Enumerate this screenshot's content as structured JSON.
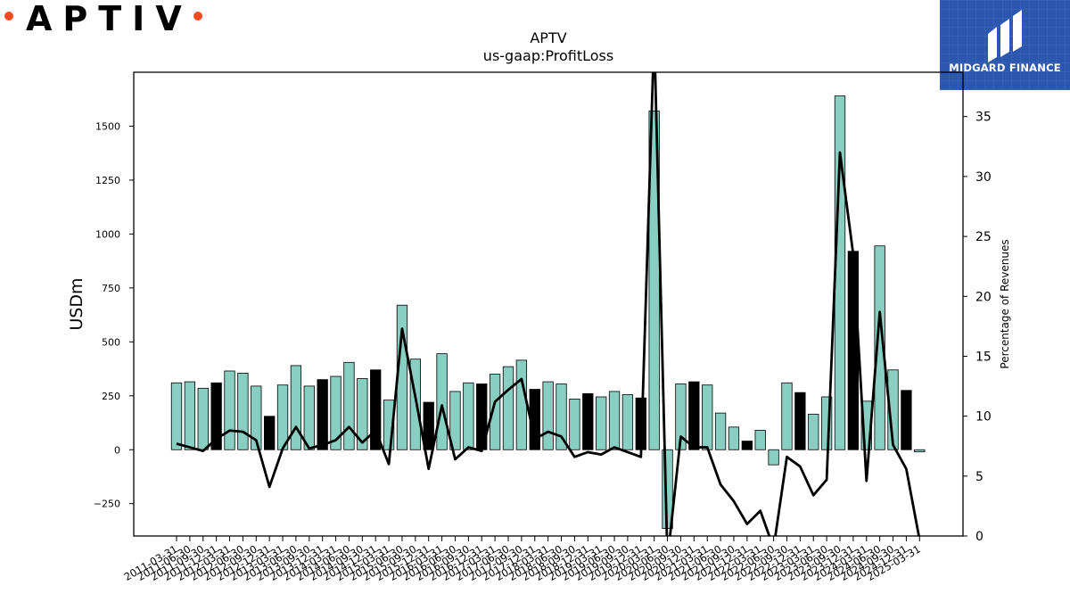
{
  "logo": {
    "text": "APTIV",
    "dot_color": "#f84923"
  },
  "brand": {
    "name": "MIDGARD FINANCE",
    "background": "#2c57ae"
  },
  "chart_data": {
    "type": "bar",
    "title": "APTV",
    "subtitle": "us-gaap:ProfitLoss",
    "ylabel": "USDm",
    "y2label": "Percentage of Revenues",
    "ylim": [
      -400,
      1750
    ],
    "y2lim": [
      0,
      38.7
    ],
    "yticks": [
      -250,
      0,
      250,
      500,
      750,
      1000,
      1250,
      1500
    ],
    "y2ticks": [
      0,
      5,
      10,
      15,
      20,
      25,
      30,
      35
    ],
    "bar_color": "#88cfc2",
    "highlight_color": "#000000",
    "line_color": "#000000",
    "categories": [
      "2011-03-31",
      "2011-06-30",
      "2011-09-30",
      "2011-12-31",
      "2012-03-31",
      "2012-06-30",
      "2012-09-30",
      "2012-12-31",
      "2013-03-31",
      "2013-06-30",
      "2013-09-30",
      "2013-12-31",
      "2014-03-31",
      "2014-06-30",
      "2014-09-30",
      "2014-12-31",
      "2015-03-31",
      "2015-06-30",
      "2015-09-30",
      "2015-12-31",
      "2016-03-31",
      "2016-06-30",
      "2016-09-30",
      "2016-12-31",
      "2017-03-31",
      "2017-06-30",
      "2017-09-30",
      "2017-12-31",
      "2018-03-31",
      "2018-06-30",
      "2018-09-30",
      "2018-12-31",
      "2019-03-31",
      "2019-06-30",
      "2019-09-30",
      "2019-12-31",
      "2020-03-31",
      "2020-06-30",
      "2020-09-30",
      "2020-12-31",
      "2021-03-31",
      "2021-06-30",
      "2021-09-30",
      "2021-12-31",
      "2022-03-31",
      "2022-06-30",
      "2022-09-30",
      "2022-12-31",
      "2023-03-31",
      "2023-06-30",
      "2023-09-30",
      "2023-12-31",
      "2024-03-31",
      "2024-06-30",
      "2024-09-30",
      "2024-12-31",
      "2025-03-31"
    ],
    "values": [
      310,
      315,
      285,
      310,
      365,
      355,
      295,
      155,
      300,
      390,
      295,
      325,
      340,
      405,
      330,
      370,
      230,
      670,
      420,
      220,
      445,
      270,
      310,
      305,
      350,
      385,
      415,
      280,
      315,
      305,
      235,
      260,
      245,
      270,
      255,
      240,
      1570,
      -365,
      305,
      315,
      300,
      170,
      105,
      40,
      90,
      -70,
      310,
      265,
      165,
      245,
      1640,
      920,
      225,
      945,
      370,
      275,
      -10
    ],
    "highlighted": [
      false,
      false,
      false,
      true,
      false,
      false,
      false,
      true,
      false,
      false,
      false,
      true,
      false,
      false,
      false,
      true,
      false,
      false,
      false,
      true,
      false,
      false,
      false,
      true,
      false,
      false,
      false,
      true,
      false,
      false,
      false,
      true,
      false,
      false,
      false,
      true,
      false,
      false,
      false,
      true,
      false,
      false,
      false,
      true,
      false,
      false,
      false,
      true,
      false,
      false,
      false,
      true,
      false,
      false,
      false,
      true,
      false
    ],
    "line_values": [
      7.7,
      7.4,
      7.1,
      8.1,
      8.8,
      8.7,
      8.0,
      4.1,
      7.3,
      9.1,
      7.3,
      7.6,
      8.0,
      9.1,
      7.8,
      8.8,
      6.0,
      17.3,
      11.6,
      5.6,
      10.9,
      6.4,
      7.4,
      7.1,
      11.2,
      12.2,
      13.1,
      8.1,
      8.7,
      8.3,
      6.6,
      7.0,
      6.8,
      7.4,
      7.0,
      6.6,
      42.0,
      -2.0,
      8.3,
      7.4,
      7.4,
      4.3,
      2.9,
      1.0,
      2.1,
      -1.0,
      6.6,
      5.8,
      3.4,
      4.7,
      32.0,
      23.5,
      4.6,
      18.7,
      7.6,
      5.6,
      -0.3
    ]
  }
}
